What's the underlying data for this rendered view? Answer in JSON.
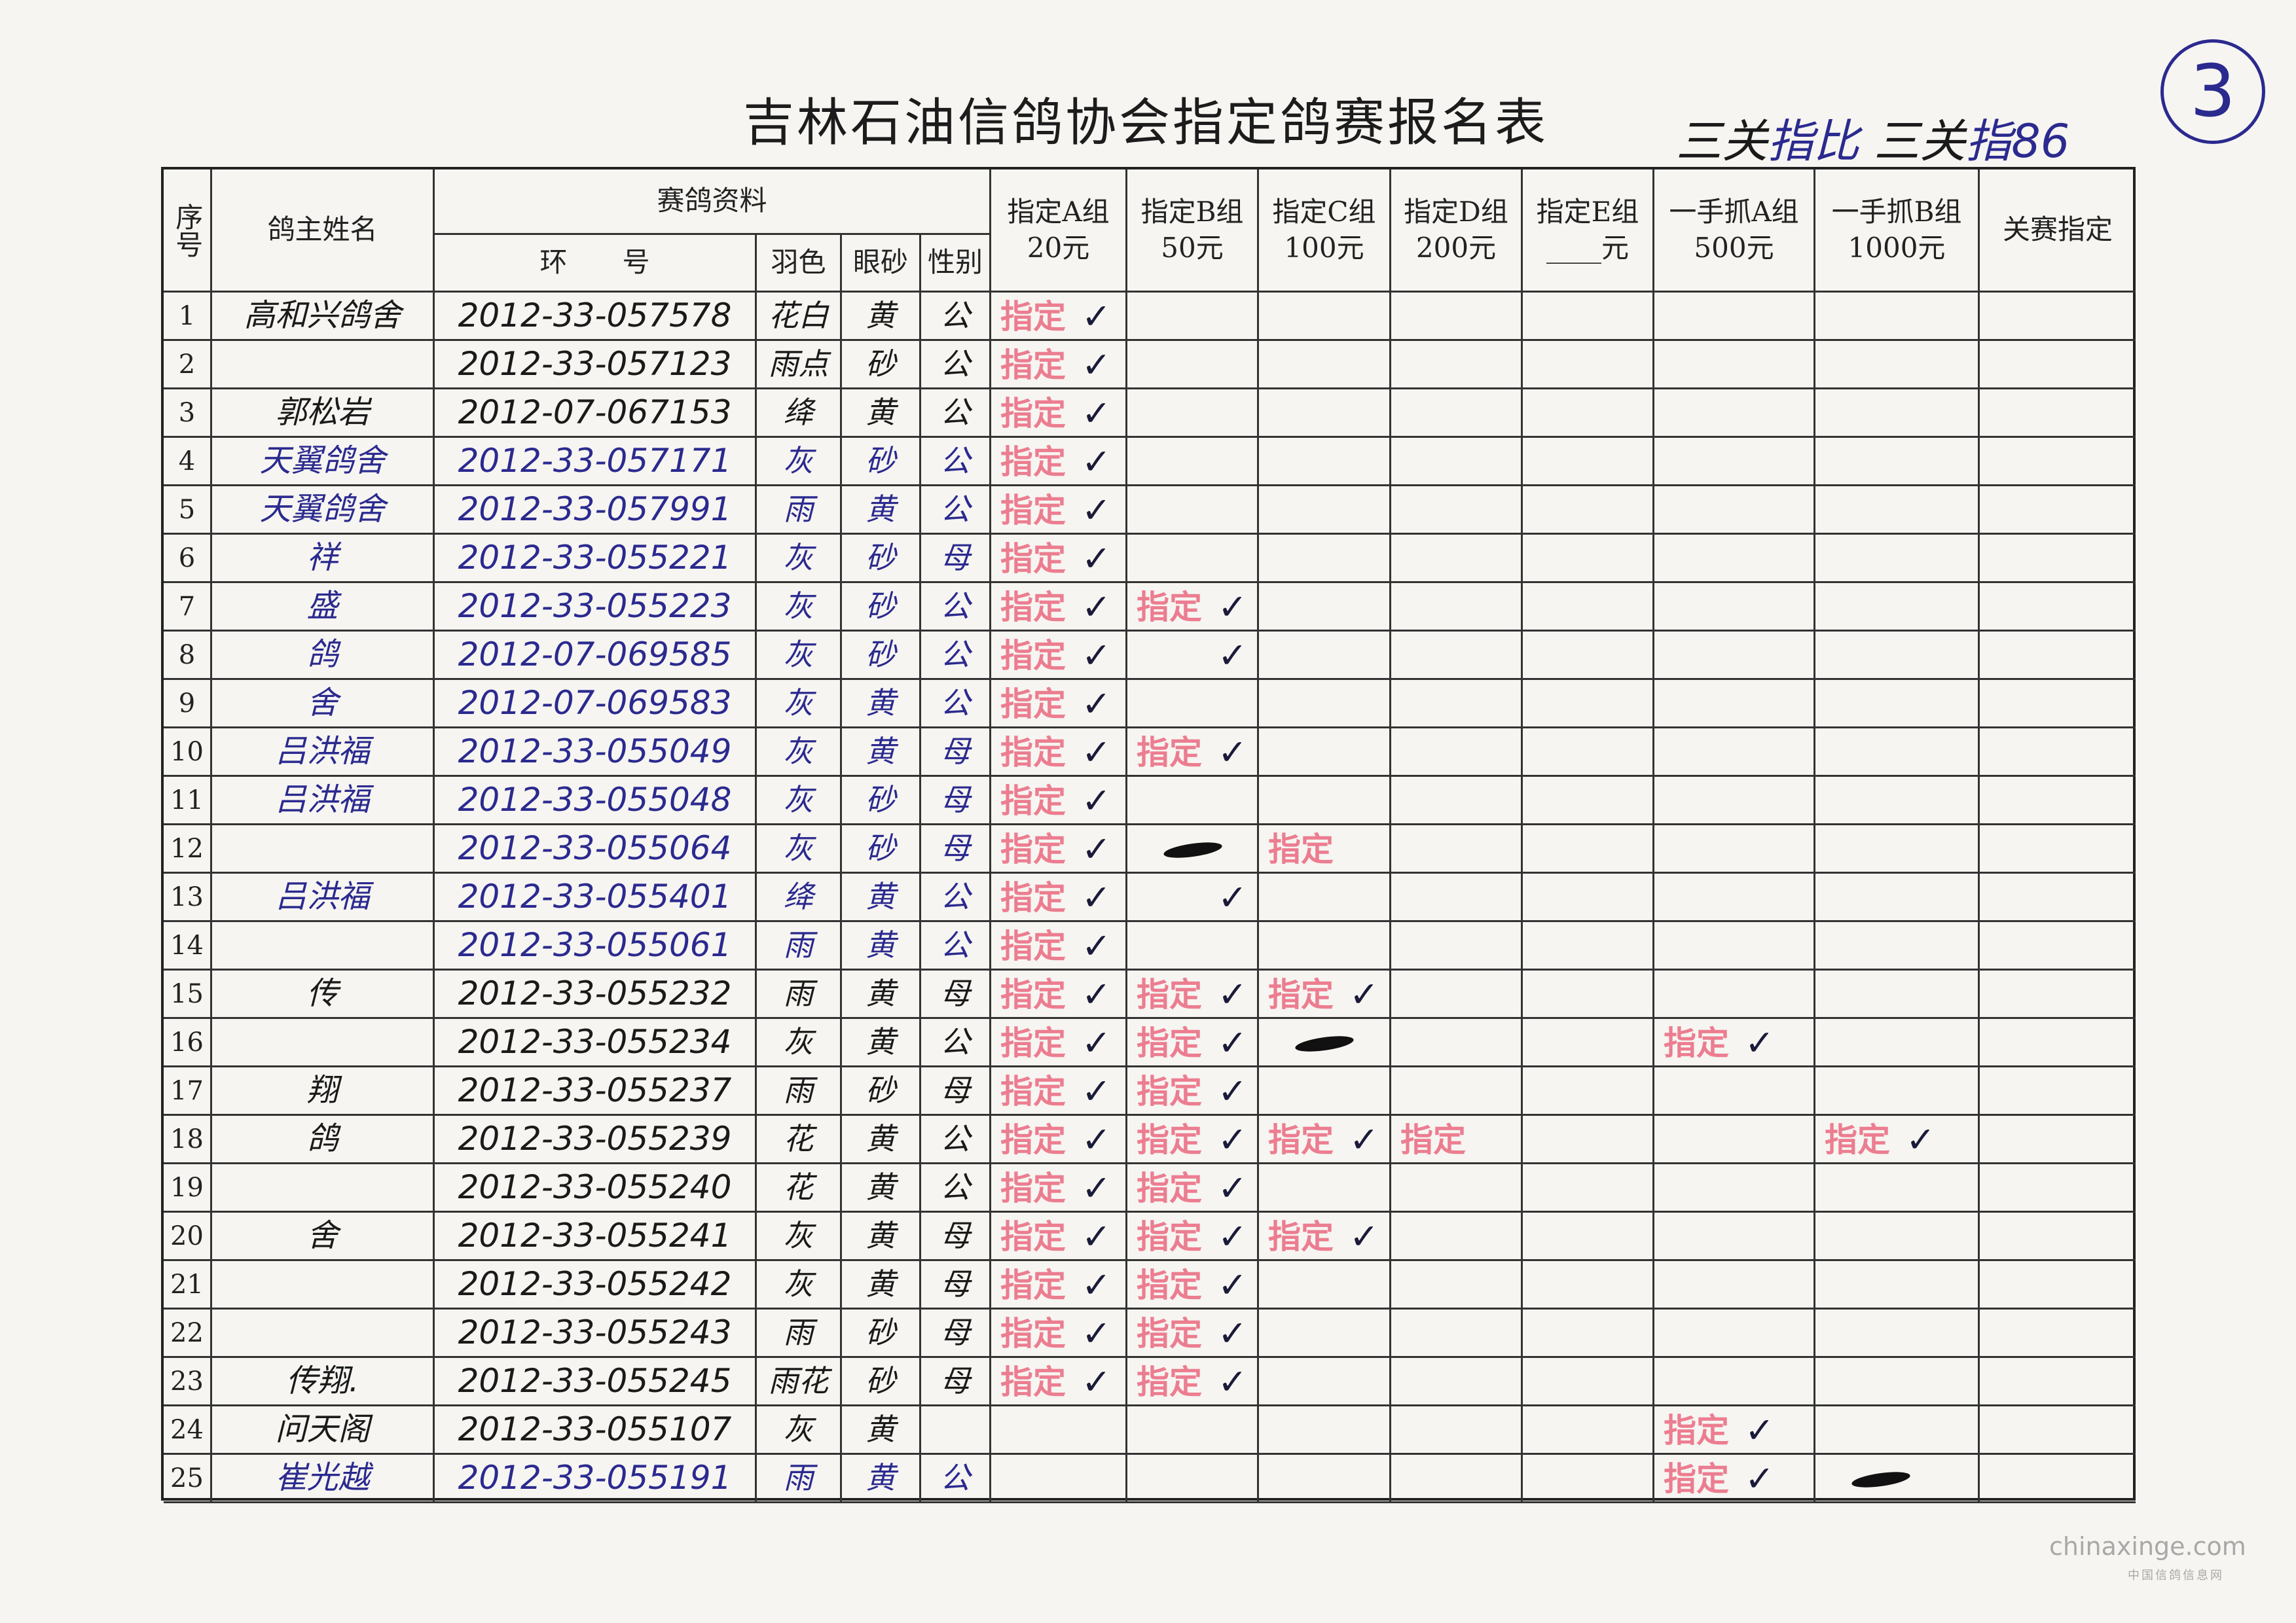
{
  "title": "吉林石油信鸽协会指定鸽赛报名表",
  "handwritten_note": {
    "black1": "三关",
    "blue1": "指比",
    "black2": "三关",
    "blue2": "指86"
  },
  "circled_number": "3",
  "headers": {
    "seq": "序号",
    "owner": "鸽主姓名",
    "bird_info": "赛鸽资料",
    "ring": "环　　号",
    "color": "羽色",
    "eye": "眼砂",
    "sex": "性别",
    "groups": [
      {
        "label": "指定A组",
        "fee": "20元"
      },
      {
        "label": "指定B组",
        "fee": "50元"
      },
      {
        "label": "指定C组",
        "fee": "100元"
      },
      {
        "label": "指定D组",
        "fee": "200元"
      },
      {
        "label": "指定E组",
        "fee": "____元"
      },
      {
        "label": "一手抓A组",
        "fee": "500元"
      },
      {
        "label": "一手抓B组",
        "fee": "1000元"
      }
    ],
    "final": "关赛指定"
  },
  "rows": [
    {
      "no": "1",
      "owner": "高和兴鸽舍",
      "ring": "2012-33-057578",
      "color": "花白",
      "eye": "黄",
      "sex": "公",
      "ink": "black"
    },
    {
      "no": "2",
      "owner": "",
      "ring": "2012-33-057123",
      "color": "雨点",
      "eye": "砂",
      "sex": "公",
      "ink": "black"
    },
    {
      "no": "3",
      "owner": "郭松岩",
      "ring": "2012-07-067153",
      "color": "绛",
      "eye": "黄",
      "sex": "公",
      "ink": "black"
    },
    {
      "no": "4",
      "owner": "天翼鸽舍",
      "ring": "2012-33-057171",
      "color": "灰",
      "eye": "砂",
      "sex": "公",
      "ink": "blue"
    },
    {
      "no": "5",
      "owner": "天翼鸽舍",
      "ring": "2012-33-057991",
      "color": "雨",
      "eye": "黄",
      "sex": "公",
      "ink": "blue"
    },
    {
      "no": "6",
      "owner": "祥",
      "ring": "2012-33-055221",
      "color": "灰",
      "eye": "砂",
      "sex": "母",
      "ink": "blue"
    },
    {
      "no": "7",
      "owner": "盛",
      "ring": "2012-33-055223",
      "color": "灰",
      "eye": "砂",
      "sex": "公",
      "ink": "blue"
    },
    {
      "no": "8",
      "owner": "鸽",
      "ring": "2012-07-069585",
      "color": "灰",
      "eye": "砂",
      "sex": "公",
      "ink": "blue"
    },
    {
      "no": "9",
      "owner": "舍",
      "ring": "2012-07-069583",
      "color": "灰",
      "eye": "黄",
      "sex": "公",
      "ink": "blue"
    },
    {
      "no": "10",
      "owner": "吕洪福",
      "ring": "2012-33-055049",
      "color": "灰",
      "eye": "黄",
      "sex": "母",
      "ink": "blue"
    },
    {
      "no": "11",
      "owner": "吕洪福",
      "ring": "2012-33-055048",
      "color": "灰",
      "eye": "砂",
      "sex": "母",
      "ink": "blue"
    },
    {
      "no": "12",
      "owner": "",
      "ring": "2012-33-055064",
      "color": "灰",
      "eye": "砂",
      "sex": "母",
      "ink": "blue"
    },
    {
      "no": "13",
      "owner": "吕洪福",
      "ring": "2012-33-055401",
      "color": "绛",
      "eye": "黄",
      "sex": "公",
      "ink": "blue"
    },
    {
      "no": "14",
      "owner": "",
      "ring": "2012-33-055061",
      "color": "雨",
      "eye": "黄",
      "sex": "公",
      "ink": "blue"
    },
    {
      "no": "15",
      "owner": "传",
      "ring": "2012-33-055232",
      "color": "雨",
      "eye": "黄",
      "sex": "母",
      "ink": "black"
    },
    {
      "no": "16",
      "owner": "",
      "ring": "2012-33-055234",
      "color": "灰",
      "eye": "黄",
      "sex": "公",
      "ink": "black"
    },
    {
      "no": "17",
      "owner": "翔",
      "ring": "2012-33-055237",
      "color": "雨",
      "eye": "砂",
      "sex": "母",
      "ink": "black"
    },
    {
      "no": "18",
      "owner": "鸽",
      "ring": "2012-33-055239",
      "color": "花",
      "eye": "黄",
      "sex": "公",
      "ink": "black"
    },
    {
      "no": "19",
      "owner": "",
      "ring": "2012-33-055240",
      "color": "花",
      "eye": "黄",
      "sex": "公",
      "ink": "black"
    },
    {
      "no": "20",
      "owner": "舍",
      "ring": "2012-33-055241",
      "color": "灰",
      "eye": "黄",
      "sex": "母",
      "ink": "black"
    },
    {
      "no": "21",
      "owner": "",
      "ring": "2012-33-055242",
      "color": "灰",
      "eye": "黄",
      "sex": "母",
      "ink": "black"
    },
    {
      "no": "22",
      "owner": "",
      "ring": "2012-33-055243",
      "color": "雨",
      "eye": "砂",
      "sex": "母",
      "ink": "black"
    },
    {
      "no": "23",
      "owner": "传翔.",
      "ring": "2012-33-055245",
      "color": "雨花",
      "eye": "砂",
      "sex": "母",
      "ink": "black"
    },
    {
      "no": "24",
      "owner": "问天阁",
      "ring": "2012-33-055107",
      "color": "灰",
      "eye": "黄",
      "sex": "",
      "ink": "black"
    },
    {
      "no": "25",
      "owner": "崔光越",
      "ring": "2012-33-055191",
      "color": "雨",
      "eye": "黄",
      "sex": "公",
      "ink": "blue"
    }
  ],
  "stamp_text": "指定",
  "check_glyph": "✓",
  "marks": {
    "A": {
      "stamp_check": [
        1,
        2,
        3,
        4,
        5,
        6,
        7,
        8,
        9,
        10,
        11,
        12,
        13,
        14,
        15,
        16,
        17,
        18,
        19,
        20,
        21,
        22,
        23
      ]
    },
    "B": {
      "stamp_check": [
        7,
        10,
        15,
        16,
        17,
        18,
        19,
        20,
        21,
        22,
        23
      ],
      "check": [
        8,
        13
      ],
      "scribble": [
        12
      ]
    },
    "C": {
      "stamp": [
        12
      ],
      "stamp_check": [
        15,
        18,
        20
      ],
      "scribble": [
        16
      ]
    },
    "D": {
      "stamp": [
        18
      ]
    },
    "E": {},
    "HA": {
      "stamp_check": [
        16,
        24,
        25
      ]
    },
    "HB": {
      "stamp_check": [
        18
      ],
      "scribble": [
        25
      ]
    }
  },
  "colors": {
    "stamp": "#e8506a",
    "blue_ink": "#2b2a8f",
    "black_ink": "#1a1a1a",
    "paper": "#f6f5f1"
  },
  "watermark": {
    "main": "chinaxinge.com",
    "sub": "中国信鸽信息网"
  }
}
